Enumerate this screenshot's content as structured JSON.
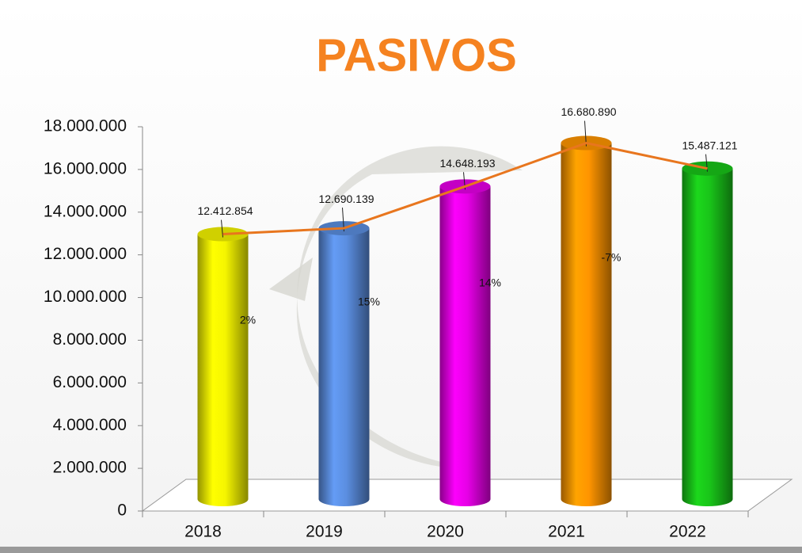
{
  "chart_data": {
    "type": "bar",
    "title": "PASIVOS",
    "categories": [
      "2018",
      "2019",
      "2020",
      "2021",
      "2022"
    ],
    "values": [
      12412854,
      12690139,
      14648193,
      16680890,
      15487121
    ],
    "value_labels": [
      "12.412.854",
      "12.690.139",
      "14.648.193",
      "16.680.890",
      "15.487.121"
    ],
    "colors": [
      "#f5f500",
      "#5b8ee0",
      "#e600e6",
      "#ff9500",
      "#19c419"
    ],
    "line_color": "#e8761e",
    "annotations": [
      "2%",
      "15%",
      "14%",
      "-7%"
    ],
    "ylim": [
      0,
      18000000
    ],
    "yticks": [
      0,
      {
        "value": 2000000,
        "label": "2.000.000"
      },
      {
        "value": 4000000,
        "label": "4.000.000"
      },
      {
        "value": 6000000,
        "label": "6.000.000"
      },
      {
        "value": 8000000,
        "label": "8.000.000"
      },
      {
        "value": 10000000,
        "label": "10.000.000"
      },
      {
        "value": 12000000,
        "label": "12.000.000"
      },
      {
        "value": 14000000,
        "label": "14.000.000"
      },
      {
        "value": 16000000,
        "label": "16.000.000"
      },
      {
        "value": 18000000,
        "label": "18.000.000"
      }
    ],
    "grid": false
  }
}
